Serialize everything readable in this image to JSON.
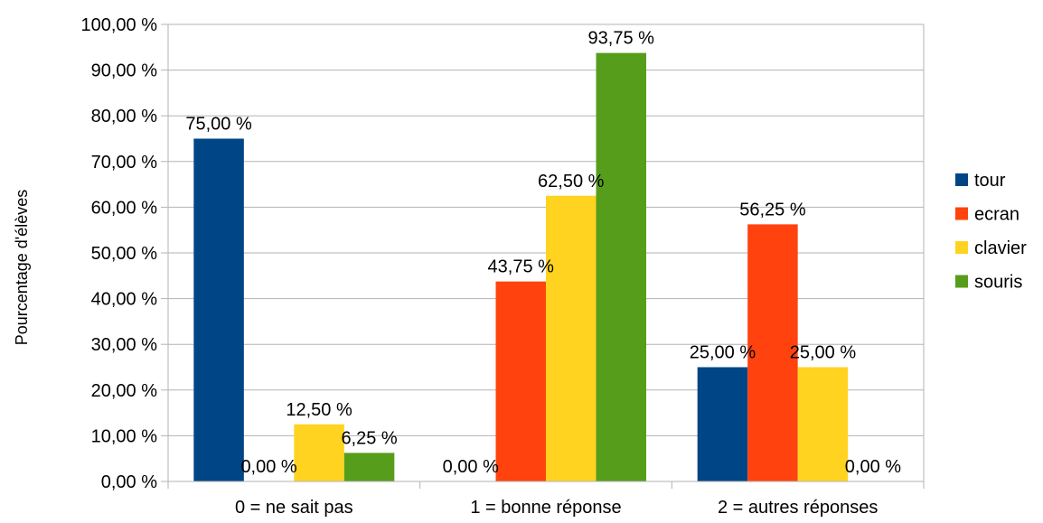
{
  "chart_data": {
    "type": "bar",
    "title": "",
    "xlabel": "",
    "ylabel": "Pourcentage d'élèves",
    "ylim": [
      0,
      100
    ],
    "y_ticks": [
      "0,00 %",
      "10,00 %",
      "20,00 %",
      "30,00 %",
      "40,00 %",
      "50,00 %",
      "60,00 %",
      "70,00 %",
      "80,00 %",
      "90,00 %",
      "100,00 %"
    ],
    "categories": [
      "0 = ne sait pas",
      "1 = bonne réponse",
      "2 = autres réponses"
    ],
    "series": [
      {
        "name": "tour",
        "color": "#004586",
        "values": [
          75,
          0,
          25
        ],
        "labels": [
          "75,00 %",
          "0,00 %",
          "25,00 %"
        ]
      },
      {
        "name": "ecran",
        "color": "#ff420e",
        "values": [
          0,
          43.75,
          56.25
        ],
        "labels": [
          "0,00 %",
          "43,75 %",
          "56,25 %"
        ]
      },
      {
        "name": "clavier",
        "color": "#ffd320",
        "values": [
          12.5,
          62.5,
          25
        ],
        "labels": [
          "12,50 %",
          "62,50 %",
          "25,00 %"
        ]
      },
      {
        "name": "souris",
        "color": "#579d1c",
        "values": [
          6.25,
          93.75,
          0
        ],
        "labels": [
          "6,25 %",
          "93,75 %",
          "0,00 %"
        ]
      }
    ],
    "grid": true,
    "legend_position": "right"
  }
}
